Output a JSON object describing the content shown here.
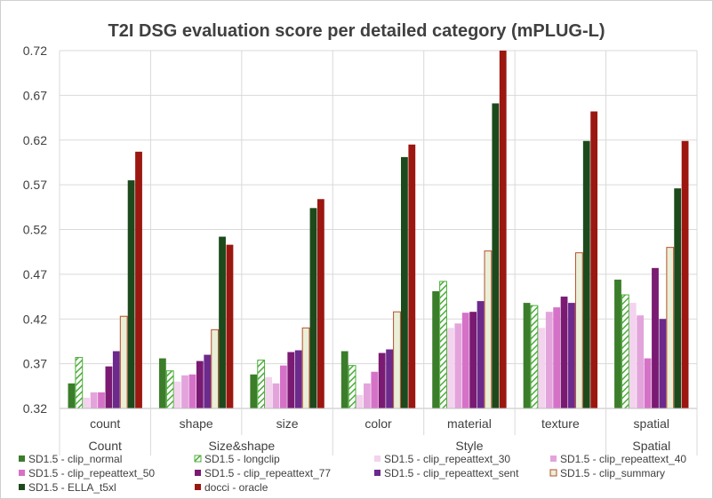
{
  "chart_data": {
    "type": "bar",
    "title": "T2I DSG evaluation score per detailed category (mPLUG-L)",
    "xlabel": "",
    "ylabel": "",
    "ylim": [
      0.32,
      0.72
    ],
    "yticks": [
      "0.32",
      "0.37",
      "0.42",
      "0.47",
      "0.52",
      "0.57",
      "0.62",
      "0.67",
      "0.72"
    ],
    "grid": true,
    "legend_position": "bottom",
    "categories": [
      "count",
      "shape",
      "size",
      "color",
      "material",
      "texture",
      "spatial"
    ],
    "groups": [
      {
        "label": "Count",
        "categories": [
          "count"
        ]
      },
      {
        "label": "Size&shape",
        "categories": [
          "shape",
          "size"
        ]
      },
      {
        "label": "Style",
        "categories": [
          "color",
          "material",
          "texture"
        ]
      },
      {
        "label": "Spatial",
        "categories": [
          "spatial"
        ]
      }
    ],
    "series": [
      {
        "name": "SD1.5 - clip_normal",
        "color": "#3b7d2a",
        "pattern": "solid",
        "values": [
          0.348,
          0.376,
          0.358,
          0.384,
          0.451,
          0.438,
          0.464
        ]
      },
      {
        "name": "SD1.5 - longclip",
        "color": "#4cad3a",
        "pattern": "hatch",
        "values": [
          0.377,
          0.362,
          0.374,
          0.368,
          0.462,
          0.435,
          0.447
        ]
      },
      {
        "name": "SD1.5 - clip_repeattext_30",
        "color": "#f3d3ee",
        "pattern": "solid",
        "values": [
          0.332,
          0.35,
          0.355,
          0.335,
          0.41,
          0.41,
          0.438
        ]
      },
      {
        "name": "SD1.5 - clip_repeattext_40",
        "color": "#e3a4dc",
        "pattern": "solid",
        "values": [
          0.338,
          0.357,
          0.348,
          0.348,
          0.415,
          0.428,
          0.424
        ]
      },
      {
        "name": "SD1.5 - clip_repeattext_50",
        "color": "#d572c8",
        "pattern": "solid",
        "values": [
          0.338,
          0.358,
          0.368,
          0.361,
          0.427,
          0.433,
          0.376
        ]
      },
      {
        "name": "SD1.5 - clip_repeattext_77",
        "color": "#7a1a72",
        "pattern": "solid",
        "values": [
          0.367,
          0.373,
          0.383,
          0.382,
          0.428,
          0.445,
          0.477
        ]
      },
      {
        "name": "SD1.5 - clip_repeattext_sent",
        "color": "#6b2a8c",
        "pattern": "solid",
        "values": [
          0.384,
          0.38,
          0.385,
          0.386,
          0.44,
          0.438,
          0.42
        ]
      },
      {
        "name": "SD1.5 - clip_summary",
        "color": "#eaefd8",
        "stroke": "#b5502a",
        "pattern": "outline",
        "values": [
          0.423,
          0.408,
          0.41,
          0.428,
          0.496,
          0.494,
          0.5
        ]
      },
      {
        "name": "SD1.5 - ELLA_t5xl",
        "color": "#1c4a1c",
        "pattern": "solid",
        "values": [
          0.575,
          0.512,
          0.544,
          0.601,
          0.661,
          0.619,
          0.566
        ]
      },
      {
        "name": "docci - oracle",
        "color": "#9b1710",
        "pattern": "solid",
        "values": [
          0.607,
          0.503,
          0.554,
          0.615,
          0.72,
          0.652,
          0.619
        ]
      }
    ]
  }
}
